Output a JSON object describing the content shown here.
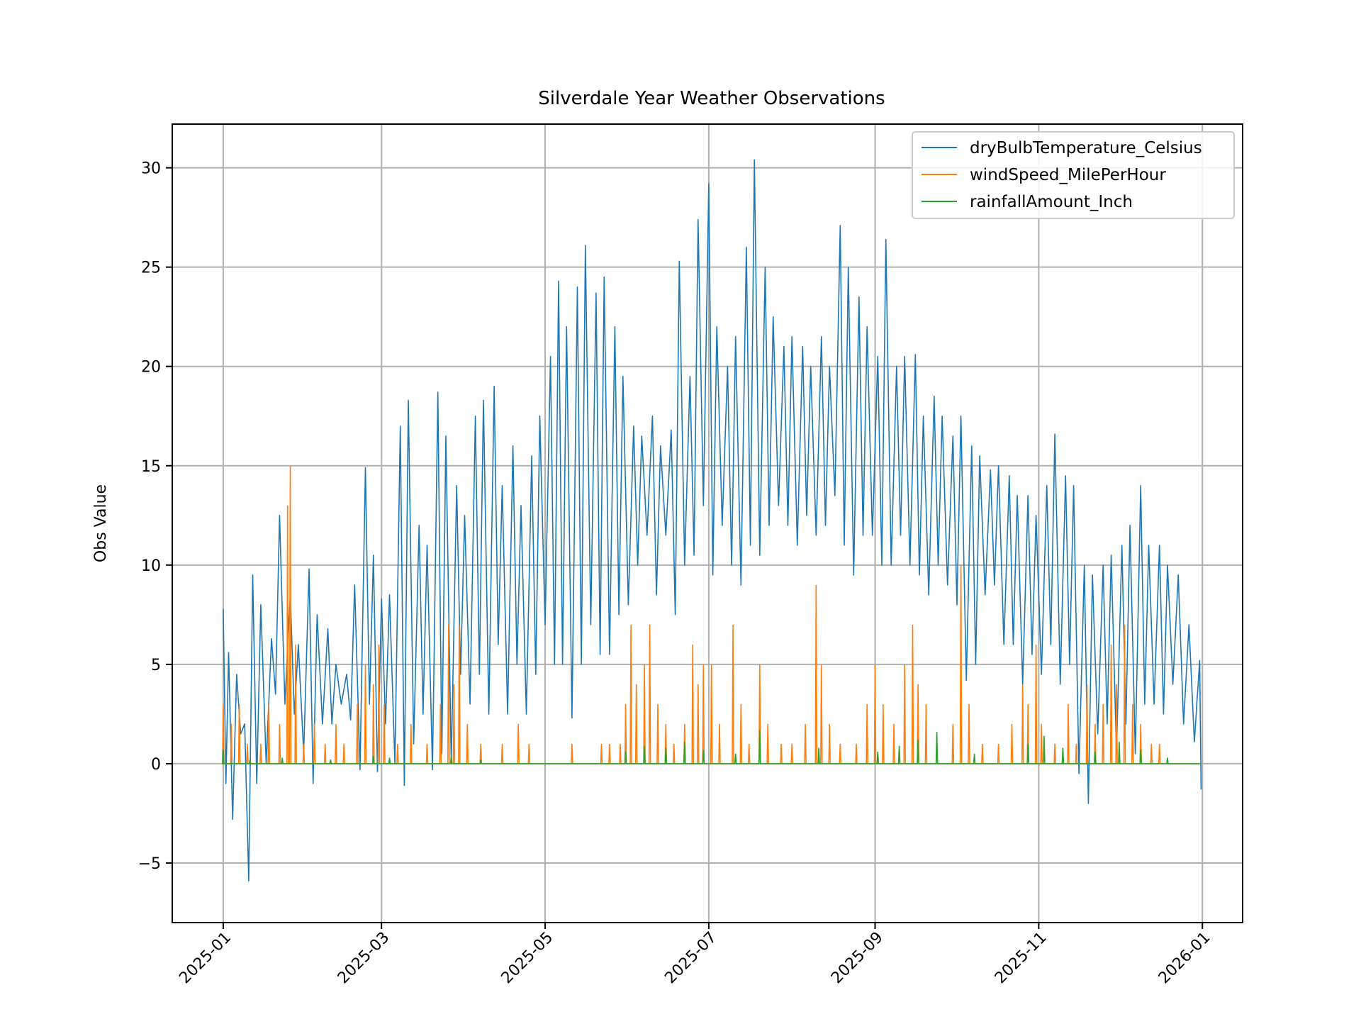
{
  "chart_data": {
    "type": "line",
    "title": "Silverdale Year Weather Observations",
    "xlabel": "",
    "ylabel": "Obs Value",
    "x_range": [
      "2025-01-01",
      "2025-12-31"
    ],
    "xlim": [
      "2024-12-13",
      "2026-01-16"
    ],
    "ylim": [
      -8,
      32.2
    ],
    "grid": true,
    "legend_position": "upper right",
    "x_ticks": [
      {
        "date": "2025-01-01",
        "label": "2025-01"
      },
      {
        "date": "2025-03-01",
        "label": "2025-03"
      },
      {
        "date": "2025-05-01",
        "label": "2025-05"
      },
      {
        "date": "2025-07-01",
        "label": "2025-07"
      },
      {
        "date": "2025-09-01",
        "label": "2025-09"
      },
      {
        "date": "2025-11-01",
        "label": "2025-11"
      },
      {
        "date": "2026-01-01",
        "label": "2026-01"
      }
    ],
    "y_ticks": [
      {
        "value": -5,
        "label": "−5"
      },
      {
        "value": 0,
        "label": "0"
      },
      {
        "value": 5,
        "label": "5"
      },
      {
        "value": 10,
        "label": "10"
      },
      {
        "value": 15,
        "label": "15"
      },
      {
        "value": 20,
        "label": "20"
      },
      {
        "value": 25,
        "label": "25"
      },
      {
        "value": 30,
        "label": "30"
      }
    ],
    "series": [
      {
        "name": "dryBulbTemperature_Celsius",
        "color": "#1f77b4",
        "sampling": "approx. daily peaks and troughs (hourly data summarized)",
        "day_offsets": [
          0,
          2,
          5,
          8,
          11,
          14,
          18,
          21,
          25,
          28,
          32,
          35,
          39,
          42,
          46,
          49,
          53,
          56,
          59,
          62,
          66,
          69,
          73,
          76,
          80,
          83,
          87,
          90,
          94,
          97,
          101,
          104,
          108,
          111,
          115,
          118,
          122,
          125,
          128,
          132,
          135,
          139,
          142,
          146,
          149,
          153,
          156,
          160,
          163,
          167,
          170,
          174,
          177,
          181,
          184,
          188,
          191,
          195,
          198,
          202,
          205,
          209,
          212,
          216,
          219,
          223,
          226,
          230,
          233,
          237,
          240,
          244,
          247,
          251,
          254,
          258,
          261,
          265,
          268,
          272,
          275,
          279,
          282,
          286,
          289,
          293,
          296,
          300,
          303,
          307,
          310,
          314,
          317,
          321,
          324,
          328,
          331,
          335,
          338,
          342,
          345,
          349,
          352,
          356,
          360,
          364
        ],
        "highs": [
          7.8,
          5.6,
          4.5,
          2.0,
          9.5,
          8.0,
          6.3,
          12.5,
          8.5,
          6.0,
          9.8,
          7.5,
          6.8,
          5.0,
          4.5,
          9.0,
          14.9,
          10.5,
          8.3,
          8.5,
          17.0,
          18.3,
          12.0,
          11.0,
          18.7,
          16.5,
          14.0,
          12.5,
          17.5,
          18.3,
          19.0,
          14.0,
          16.0,
          13.0,
          15.5,
          17.5,
          20.5,
          24.3,
          22.0,
          24.0,
          26.1,
          23.7,
          24.5,
          22.0,
          19.5,
          17.0,
          16.5,
          17.5,
          16.0,
          16.8,
          25.3,
          19.5,
          27.4,
          29.2,
          22.0,
          20.0,
          21.5,
          26.0,
          30.4,
          25.0,
          22.5,
          21.0,
          21.5,
          21.0,
          20.0,
          21.5,
          20.0,
          27.1,
          25.0,
          23.5,
          22.0,
          20.5,
          26.4,
          20.0,
          20.5,
          20.6,
          17.5,
          18.5,
          17.5,
          16.5,
          17.5,
          16.0,
          15.5,
          14.8,
          15.0,
          14.5,
          13.5,
          13.5,
          12.5,
          14.0,
          16.6,
          14.5,
          14.0,
          10.0,
          9.5,
          10.0,
          10.5,
          11.0,
          12.0,
          14.0,
          11.0,
          11.0,
          10.0,
          9.5,
          7.0,
          5.2
        ],
        "lows": [
          -1.0,
          -2.8,
          1.5,
          -5.9,
          -1.0,
          0.0,
          3.5,
          3.0,
          2.5,
          0.5,
          -1.0,
          2.0,
          2.0,
          3.0,
          2.2,
          -0.3,
          3.0,
          -0.4,
          2.0,
          0.0,
          -1.1,
          1.0,
          2.5,
          -0.3,
          0.5,
          0.0,
          4.5,
          3.0,
          4.5,
          2.5,
          6.0,
          2.5,
          5.0,
          2.5,
          4.5,
          7.0,
          5.0,
          5.0,
          2.3,
          5.0,
          7.0,
          5.5,
          5.5,
          7.5,
          8.0,
          10.0,
          11.5,
          8.5,
          11.5,
          7.5,
          10.0,
          10.5,
          13.0,
          9.5,
          12.0,
          10.0,
          9.0,
          11.0,
          10.5,
          12.0,
          13.0,
          12.0,
          11.0,
          12.5,
          11.5,
          12.0,
          13.5,
          11.0,
          9.5,
          11.5,
          11.5,
          10.0,
          10.0,
          11.5,
          10.0,
          9.5,
          8.5,
          10.0,
          9.0,
          8.0,
          4.2,
          5.0,
          8.5,
          9.0,
          6.0,
          6.0,
          4.0,
          5.5,
          4.5,
          6.0,
          4.0,
          5.0,
          -0.5,
          -2.0,
          1.5,
          2.0,
          0.5,
          2.0,
          0.5,
          3.0,
          3.0,
          2.5,
          4.0,
          2.0,
          1.1,
          -1.3
        ]
      },
      {
        "name": "windSpeed_MilePerHour",
        "color": "#ff7f0e",
        "sampling": "wind spikes above zero baseline",
        "spikes": [
          {
            "day": 0,
            "value": 3
          },
          {
            "day": 3,
            "value": 2
          },
          {
            "day": 6,
            "value": 3
          },
          {
            "day": 9,
            "value": 1
          },
          {
            "day": 14,
            "value": 1
          },
          {
            "day": 17,
            "value": 3
          },
          {
            "day": 21,
            "value": 2
          },
          {
            "day": 24,
            "value": 13
          },
          {
            "day": 25,
            "value": 15
          },
          {
            "day": 27,
            "value": 6
          },
          {
            "day": 30,
            "value": 1
          },
          {
            "day": 34,
            "value": 2
          },
          {
            "day": 38,
            "value": 1
          },
          {
            "day": 42,
            "value": 2
          },
          {
            "day": 45,
            "value": 1
          },
          {
            "day": 50,
            "value": 3
          },
          {
            "day": 53,
            "value": 5
          },
          {
            "day": 56,
            "value": 4
          },
          {
            "day": 58,
            "value": 6
          },
          {
            "day": 60,
            "value": 3
          },
          {
            "day": 65,
            "value": 1
          },
          {
            "day": 70,
            "value": 2
          },
          {
            "day": 76,
            "value": 1
          },
          {
            "day": 81,
            "value": 3
          },
          {
            "day": 84,
            "value": 7
          },
          {
            "day": 86,
            "value": 4
          },
          {
            "day": 88,
            "value": 7
          },
          {
            "day": 91,
            "value": 2
          },
          {
            "day": 96,
            "value": 1
          },
          {
            "day": 104,
            "value": 1
          },
          {
            "day": 110,
            "value": 2
          },
          {
            "day": 114,
            "value": 1
          },
          {
            "day": 130,
            "value": 1
          },
          {
            "day": 141,
            "value": 1
          },
          {
            "day": 144,
            "value": 1
          },
          {
            "day": 148,
            "value": 1
          },
          {
            "day": 150,
            "value": 3
          },
          {
            "day": 152,
            "value": 7
          },
          {
            "day": 154,
            "value": 4
          },
          {
            "day": 157,
            "value": 5
          },
          {
            "day": 159,
            "value": 7
          },
          {
            "day": 162,
            "value": 3
          },
          {
            "day": 165,
            "value": 2
          },
          {
            "day": 168,
            "value": 1
          },
          {
            "day": 172,
            "value": 2
          },
          {
            "day": 175,
            "value": 6
          },
          {
            "day": 177,
            "value": 4
          },
          {
            "day": 179,
            "value": 5
          },
          {
            "day": 182,
            "value": 5
          },
          {
            "day": 185,
            "value": 2
          },
          {
            "day": 190,
            "value": 7
          },
          {
            "day": 193,
            "value": 3
          },
          {
            "day": 196,
            "value": 1
          },
          {
            "day": 200,
            "value": 5
          },
          {
            "day": 203,
            "value": 2
          },
          {
            "day": 208,
            "value": 1
          },
          {
            "day": 212,
            "value": 1
          },
          {
            "day": 217,
            "value": 2
          },
          {
            "day": 221,
            "value": 9
          },
          {
            "day": 223,
            "value": 5
          },
          {
            "day": 226,
            "value": 2
          },
          {
            "day": 230,
            "value": 1
          },
          {
            "day": 236,
            "value": 1
          },
          {
            "day": 240,
            "value": 3
          },
          {
            "day": 243,
            "value": 5
          },
          {
            "day": 246,
            "value": 3
          },
          {
            "day": 250,
            "value": 2
          },
          {
            "day": 254,
            "value": 5
          },
          {
            "day": 257,
            "value": 7
          },
          {
            "day": 259,
            "value": 4
          },
          {
            "day": 262,
            "value": 3
          },
          {
            "day": 266,
            "value": 1
          },
          {
            "day": 272,
            "value": 2
          },
          {
            "day": 275,
            "value": 10
          },
          {
            "day": 278,
            "value": 3
          },
          {
            "day": 283,
            "value": 1
          },
          {
            "day": 289,
            "value": 1
          },
          {
            "day": 294,
            "value": 2
          },
          {
            "day": 298,
            "value": 4
          },
          {
            "day": 300,
            "value": 3
          },
          {
            "day": 303,
            "value": 6
          },
          {
            "day": 305,
            "value": 2
          },
          {
            "day": 310,
            "value": 1
          },
          {
            "day": 315,
            "value": 3
          },
          {
            "day": 318,
            "value": 1
          },
          {
            "day": 322,
            "value": 4
          },
          {
            "day": 325,
            "value": 2
          },
          {
            "day": 328,
            "value": 3
          },
          {
            "day": 331,
            "value": 6
          },
          {
            "day": 333,
            "value": 4
          },
          {
            "day": 336,
            "value": 7
          },
          {
            "day": 339,
            "value": 3
          },
          {
            "day": 342,
            "value": 2
          },
          {
            "day": 346,
            "value": 1
          },
          {
            "day": 349,
            "value": 1
          }
        ]
      },
      {
        "name": "rainfallAmount_Inch",
        "color": "#2ca02c",
        "sampling": "rainfall spikes above zero baseline",
        "spikes": [
          {
            "day": 0,
            "value": 0.7
          },
          {
            "day": 10,
            "value": 0.2
          },
          {
            "day": 22,
            "value": 0.3
          },
          {
            "day": 40,
            "value": 0.2
          },
          {
            "day": 56,
            "value": 0.4
          },
          {
            "day": 62,
            "value": 0.3
          },
          {
            "day": 85,
            "value": 0.4
          },
          {
            "day": 96,
            "value": 0.2
          },
          {
            "day": 150,
            "value": 0.6
          },
          {
            "day": 157,
            "value": 0.9
          },
          {
            "day": 165,
            "value": 0.8
          },
          {
            "day": 172,
            "value": 1.1
          },
          {
            "day": 179,
            "value": 0.7
          },
          {
            "day": 191,
            "value": 0.5
          },
          {
            "day": 200,
            "value": 1.7
          },
          {
            "day": 222,
            "value": 0.8
          },
          {
            "day": 244,
            "value": 0.6
          },
          {
            "day": 252,
            "value": 0.9
          },
          {
            "day": 259,
            "value": 1.2
          },
          {
            "day": 266,
            "value": 1.6
          },
          {
            "day": 280,
            "value": 0.5
          },
          {
            "day": 300,
            "value": 1.0
          },
          {
            "day": 306,
            "value": 1.4
          },
          {
            "day": 313,
            "value": 0.8
          },
          {
            "day": 325,
            "value": 0.6
          },
          {
            "day": 334,
            "value": 1.1
          },
          {
            "day": 342,
            "value": 0.7
          },
          {
            "day": 352,
            "value": 0.3
          }
        ]
      }
    ]
  }
}
